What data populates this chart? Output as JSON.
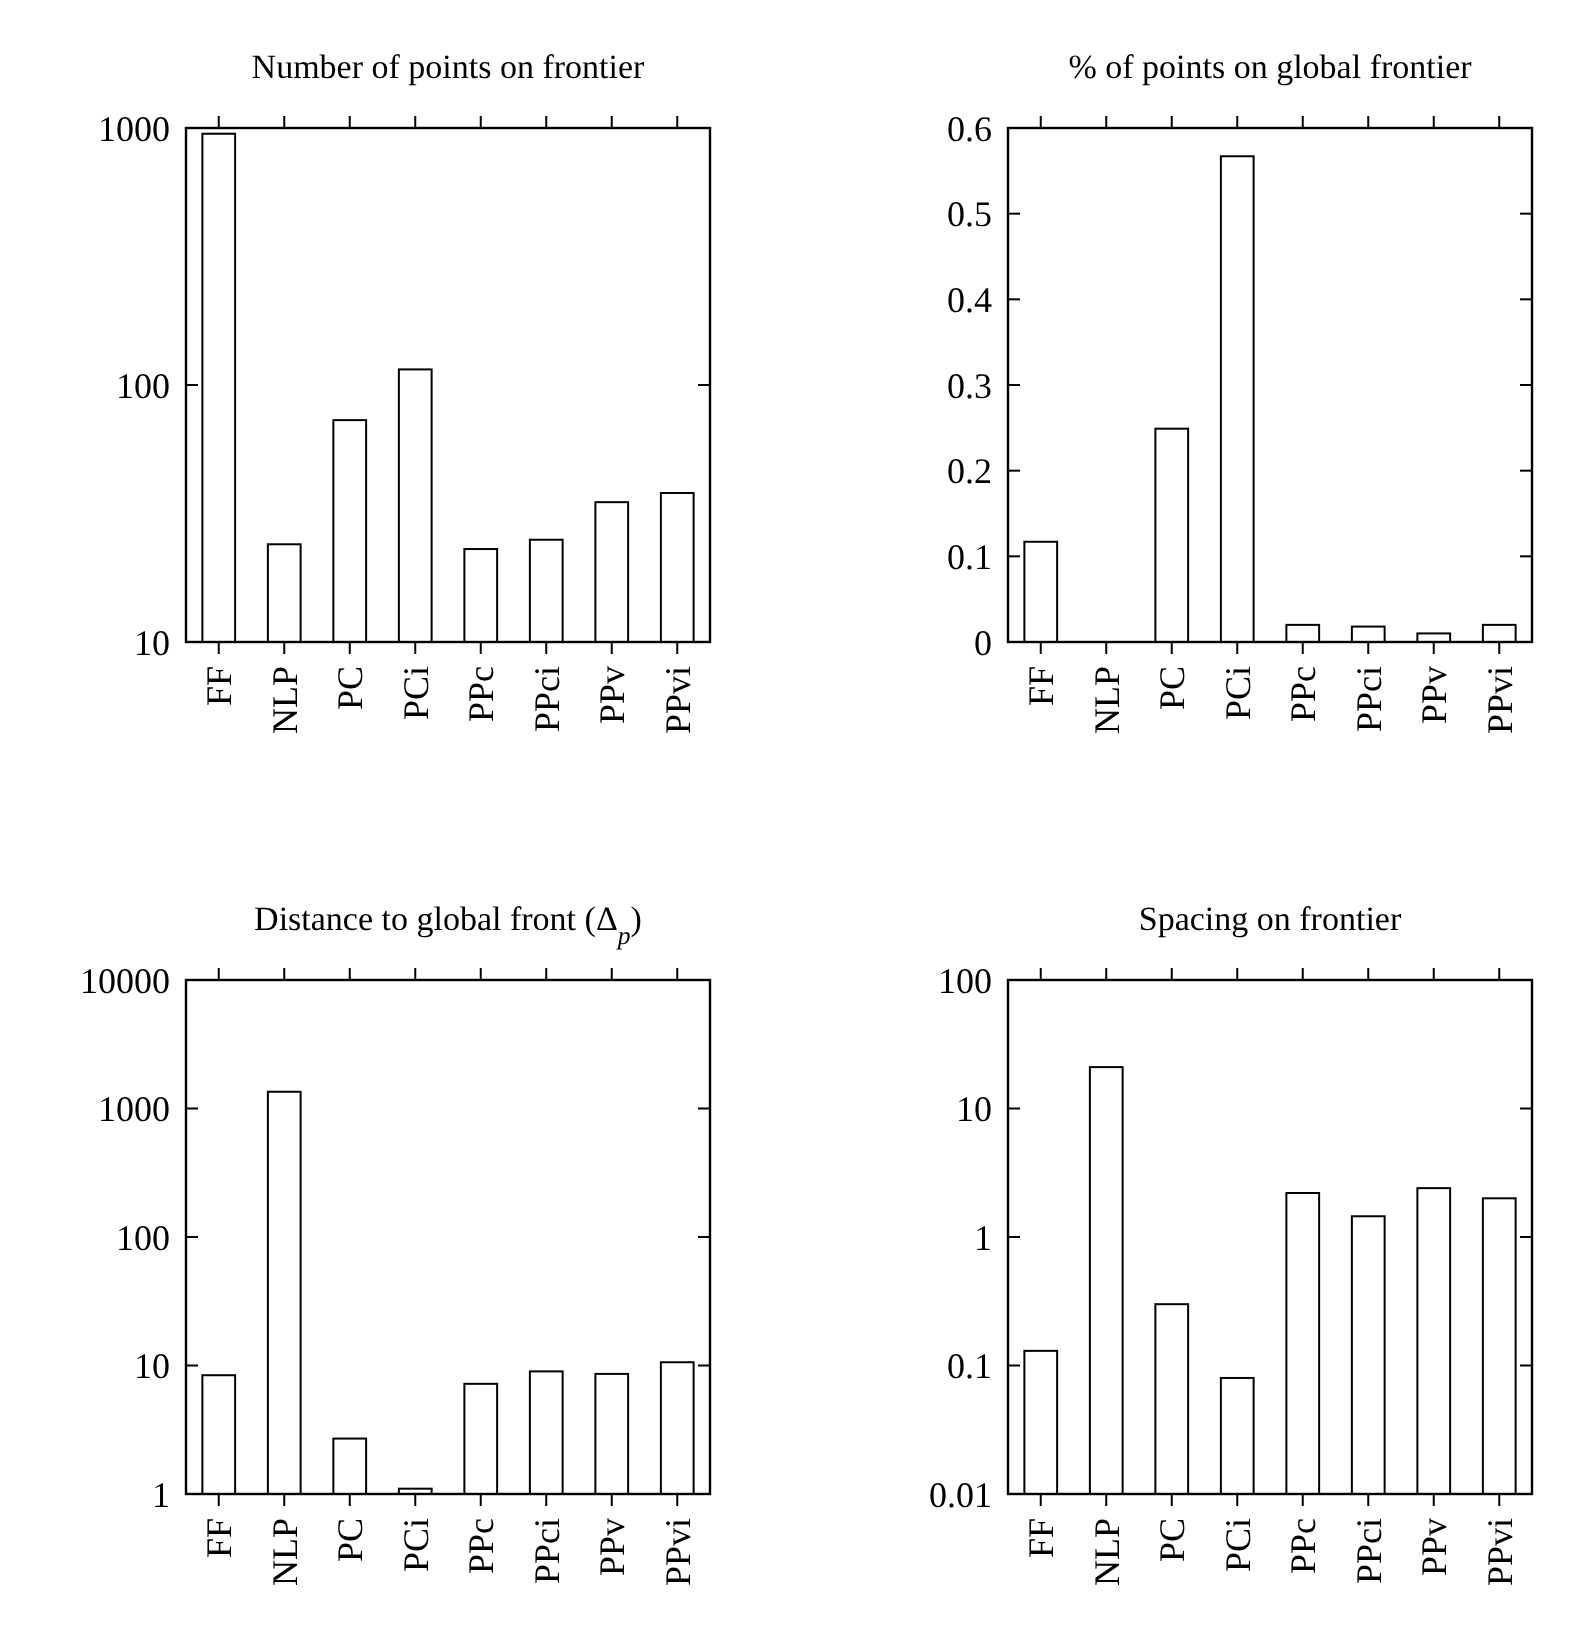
{
  "chart_data": [
    {
      "type": "bar",
      "title": "Number of points on frontier",
      "categories": [
        "FF",
        "NLP",
        "PC",
        "PCi",
        "PPc",
        "PPci",
        "PPv",
        "PPvi"
      ],
      "values": [
        950,
        24,
        73,
        115,
        23,
        25,
        35,
        38
      ],
      "color": "#ffffff",
      "log": true,
      "ylim": [
        10,
        1000
      ],
      "yticks": [
        10,
        100,
        1000
      ]
    },
    {
      "type": "bar",
      "title": "% of points on global frontier",
      "categories": [
        "FF",
        "NLP",
        "PC",
        "PCi",
        "PPc",
        "PPci",
        "PPv",
        "PPvi"
      ],
      "values": [
        0.117,
        0,
        0.249,
        0.567,
        0.02,
        0.018,
        0.01,
        0.02
      ],
      "color": "#ffffff",
      "ylim": [
        0,
        0.6
      ],
      "yticks": [
        0,
        0.1,
        0.2,
        0.3,
        0.4,
        0.5,
        0.6
      ]
    },
    {
      "type": "bar",
      "title": "Distance to global front (Δ$_{p}$)",
      "categories": [
        "FF",
        "NLP",
        "PC",
        "PCi",
        "PPc",
        "PPci",
        "PPv",
        "PPvi"
      ],
      "values": [
        8.4,
        1350,
        2.7,
        1.1,
        7.2,
        9,
        8.6,
        10.6
      ],
      "color": "#ffffff",
      "log": true,
      "ylim": [
        1,
        10000
      ],
      "yticks": [
        1,
        10,
        100,
        1000,
        10000
      ]
    },
    {
      "type": "bar",
      "title": "Spacing on frontier",
      "categories": [
        "FF",
        "NLP",
        "PC",
        "PCi",
        "PPc",
        "PPci",
        "PPv",
        "PPvi"
      ],
      "values": [
        0.13,
        21,
        0.3,
        0.08,
        2.2,
        1.45,
        2.4,
        2
      ],
      "color": "#ffffff",
      "log": true,
      "ylim": [
        0.01,
        100
      ],
      "yticks": [
        0.01,
        0.1,
        1,
        10,
        100
      ]
    }
  ]
}
